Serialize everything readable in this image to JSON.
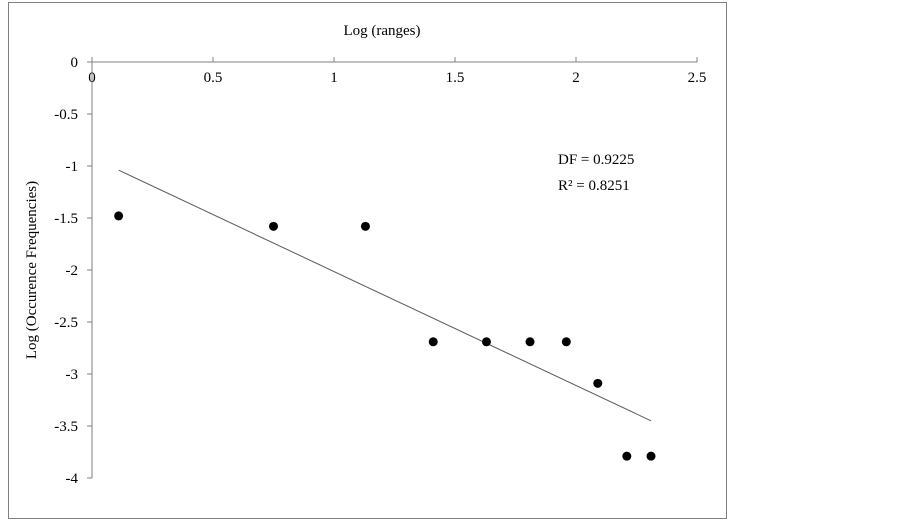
{
  "chart_data": {
    "type": "scatter",
    "title": "",
    "xlabel": "Log (ranges)",
    "ylabel": "Log (Occurence Frequencies)",
    "x_axis_position": "top",
    "xlim": [
      0,
      2.5
    ],
    "ylim": [
      -4,
      0
    ],
    "x_ticks": [
      0,
      0.5,
      1,
      1.5,
      2,
      2.5
    ],
    "x_tick_labels": [
      "0",
      "0.5",
      "1",
      "1.5",
      "2",
      "2.5"
    ],
    "y_ticks": [
      0,
      -0.5,
      -1,
      -1.5,
      -2,
      -2.5,
      -3,
      -3.5,
      -4
    ],
    "y_tick_labels": [
      "0",
      "-0.5",
      "-1",
      "-1.5",
      "-2",
      "-2.5",
      "-3",
      "-3.5",
      "-4"
    ],
    "grid": false,
    "legend": "none",
    "points": [
      {
        "x": 0.11,
        "y": -1.48
      },
      {
        "x": 0.75,
        "y": -1.58
      },
      {
        "x": 1.13,
        "y": -1.58
      },
      {
        "x": 1.41,
        "y": -2.69
      },
      {
        "x": 1.63,
        "y": -2.69
      },
      {
        "x": 1.81,
        "y": -2.69
      },
      {
        "x": 1.96,
        "y": -2.69
      },
      {
        "x": 2.09,
        "y": -3.09
      },
      {
        "x": 2.21,
        "y": -3.79
      },
      {
        "x": 2.31,
        "y": -3.79
      }
    ],
    "trendline": {
      "type": "linear",
      "x_start": 0.11,
      "y_start": -1.04,
      "x_end": 2.31,
      "y_end": -3.45
    },
    "annotations": [
      {
        "text": "DF = 0.9225"
      },
      {
        "text": "R² = 0.8251"
      }
    ],
    "colors": {
      "points": "#000000",
      "trendline": "#595959",
      "axis": "#808080",
      "border": "#808080"
    }
  }
}
